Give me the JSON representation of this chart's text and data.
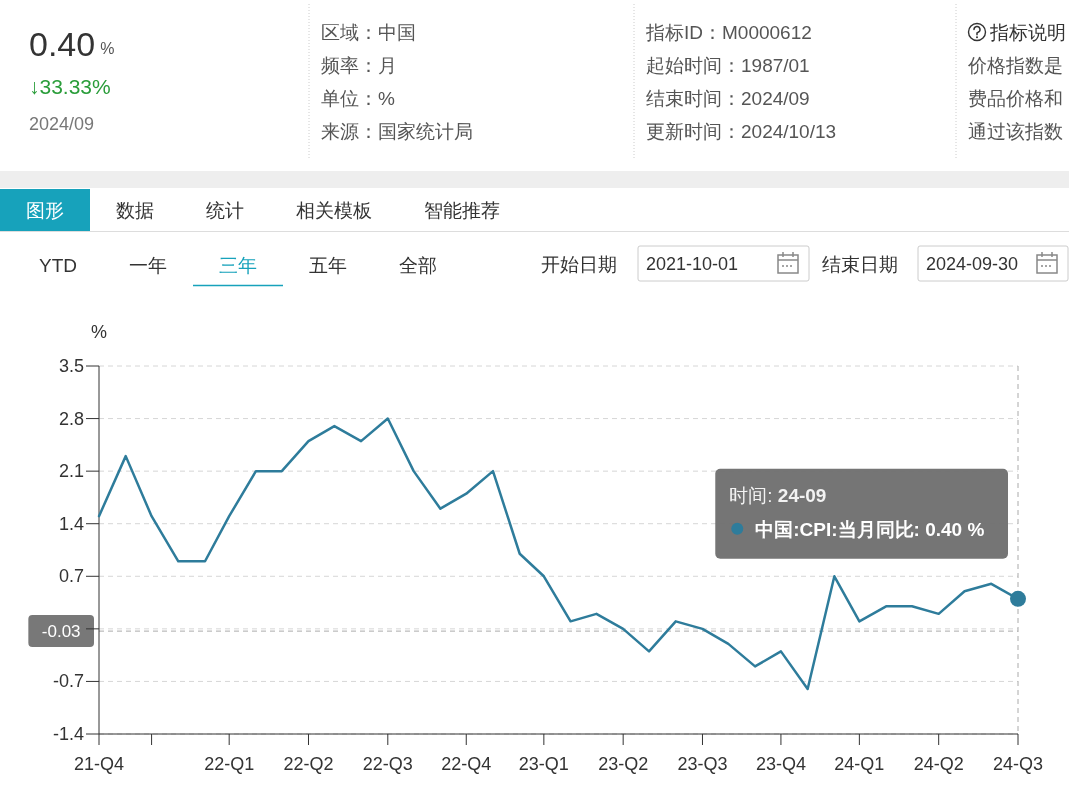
{
  "chart_data": [
    {
      "type": "other",
      "annotations": [
        "0.40",
        "%",
        "↓33.33%",
        "2024/09"
      ]
    },
    {
      "type": "other",
      "annotations": [
        "区域：中国",
        "频率：月",
        "单位：%",
        "来源：国家统计局",
        "指标ID：M0000612",
        "起始时间：1987/01",
        "结束时间：2024/09",
        "更新时间：2024/10/13",
        "指标说明",
        "价格指数是",
        "费品价格和",
        "通过该指数"
      ]
    },
    {
      "type": "other",
      "annotations": [
        "图形",
        "数据",
        "统计",
        "相关模板",
        "智能推荐"
      ]
    },
    {
      "type": "other",
      "annotations": [
        "YTD",
        "一年",
        "三年",
        "五年",
        "全部",
        "开始日期",
        "2021-10-01",
        "结束日期",
        "2024-09-30"
      ]
    },
    {
      "type": "line",
      "ylabel": "%",
      "x": [
        "2021-10",
        "2021-11",
        "2021-12",
        "2022-01",
        "2022-02",
        "2022-03",
        "2022-04",
        "2022-05",
        "2022-06",
        "2022-07",
        "2022-08",
        "2022-09",
        "2022-10",
        "2022-11",
        "2022-12",
        "2023-01",
        "2023-02",
        "2023-03",
        "2023-04",
        "2023-05",
        "2023-06",
        "2023-07",
        "2023-08",
        "2023-09",
        "2023-10",
        "2023-11",
        "2023-12",
        "2024-01",
        "2024-02",
        "2024-03",
        "2024-04",
        "2024-05",
        "2024-06",
        "2024-07",
        "2024-08",
        "2024-09"
      ],
      "series": [
        {
          "color": "#2e7c9b",
          "values": [
            1.5,
            2.3,
            1.5,
            0.9,
            0.9,
            1.5,
            2.1,
            2.1,
            2.5,
            2.7,
            2.5,
            2.8,
            2.1,
            1.6,
            1.8,
            2.1,
            1.0,
            0.7,
            0.1,
            0.2,
            0.0,
            -0.3,
            0.1,
            0.0,
            -0.2,
            -0.5,
            -0.3,
            -0.8,
            0.7,
            0.1,
            0.3,
            0.3,
            0.2,
            0.5,
            0.6,
            0.4
          ]
        }
      ],
      "xlim": [
        "2021-10",
        "2024-09"
      ],
      "xticks": [
        {
          "value": "2021-10",
          "label": "21-Q4"
        },
        {
          "value": "2021-12",
          "label": null
        },
        {
          "value": "2022-03",
          "label": "22-Q1"
        },
        {
          "value": "2022-06",
          "label": "22-Q2"
        },
        {
          "value": "2022-09",
          "label": "22-Q3"
        },
        {
          "value": "2022-12",
          "label": "22-Q4"
        },
        {
          "value": "2023-03",
          "label": "23-Q1"
        },
        {
          "value": "2023-06",
          "label": "23-Q2"
        },
        {
          "value": "2023-09",
          "label": "23-Q3"
        },
        {
          "value": "2023-12",
          "label": "23-Q4"
        },
        {
          "value": "2024-03",
          "label": "24-Q1"
        },
        {
          "value": "2024-06",
          "label": "24-Q2"
        },
        {
          "value": "2024-09",
          "label": "24-Q3"
        }
      ],
      "ylim": [
        -1.4,
        3.5
      ],
      "yticks": [
        -1.4,
        -0.7,
        {
          "value": 0,
          "label": null
        },
        0.7,
        1.4,
        2.1,
        2.8,
        3.5
      ],
      "grid": "y",
      "ref_lines": [
        {
          "axis": "x",
          "value": "2024-09",
          "line_style": "dashed"
        },
        {
          "axis": "y",
          "value": -0.03,
          "label": "-0.03",
          "line_style": "dashed"
        }
      ],
      "annotations": [
        "时间: 24-09",
        "中国:CPI:当月同比: 0.40 %"
      ]
    }
  ]
}
